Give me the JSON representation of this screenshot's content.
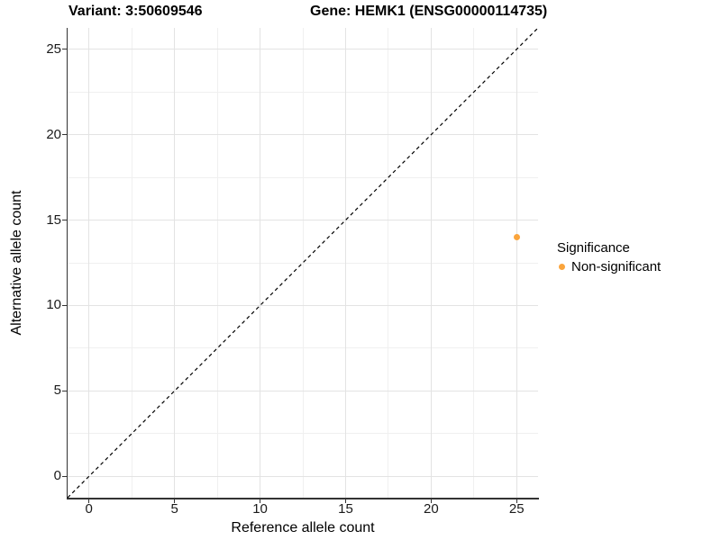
{
  "chart_data": {
    "type": "scatter",
    "title_left": "Variant: 3:50609546",
    "title_right": "Gene: HEMK1 (ENSG00000114735)",
    "xlabel": "Reference allele count",
    "ylabel": "Alternative allele count",
    "xlim": [
      -1.25,
      26.25
    ],
    "ylim": [
      -1.25,
      26.25
    ],
    "xticks": [
      0,
      5,
      10,
      15,
      20,
      25
    ],
    "yticks": [
      0,
      5,
      10,
      15,
      20,
      25
    ],
    "minor_xticks": [
      2.5,
      7.5,
      12.5,
      17.5,
      22.5
    ],
    "minor_yticks": [
      2.5,
      7.5,
      12.5,
      17.5,
      22.5
    ],
    "grid": "major+minor",
    "identity_line": {
      "style": "dashed",
      "from": [
        -1.25,
        -1.25
      ],
      "to": [
        26.25,
        26.25
      ]
    },
    "series": [
      {
        "name": "Non-significant",
        "color": "#FAA43C",
        "points": [
          {
            "x": 25,
            "y": 14
          }
        ]
      }
    ],
    "legend": {
      "title": "Significance",
      "position": "right",
      "items": [
        {
          "label": "Non-significant",
          "color": "#FAA43C"
        }
      ]
    }
  },
  "colors": {
    "background": "#ffffff",
    "axis_line": "#333333",
    "tick_label": "#1a1a1a",
    "grid_major": "#e3e3e3",
    "grid_minor": "#f0f0f0",
    "identity_line": "#000000",
    "point_orange": "#FAA43C"
  }
}
